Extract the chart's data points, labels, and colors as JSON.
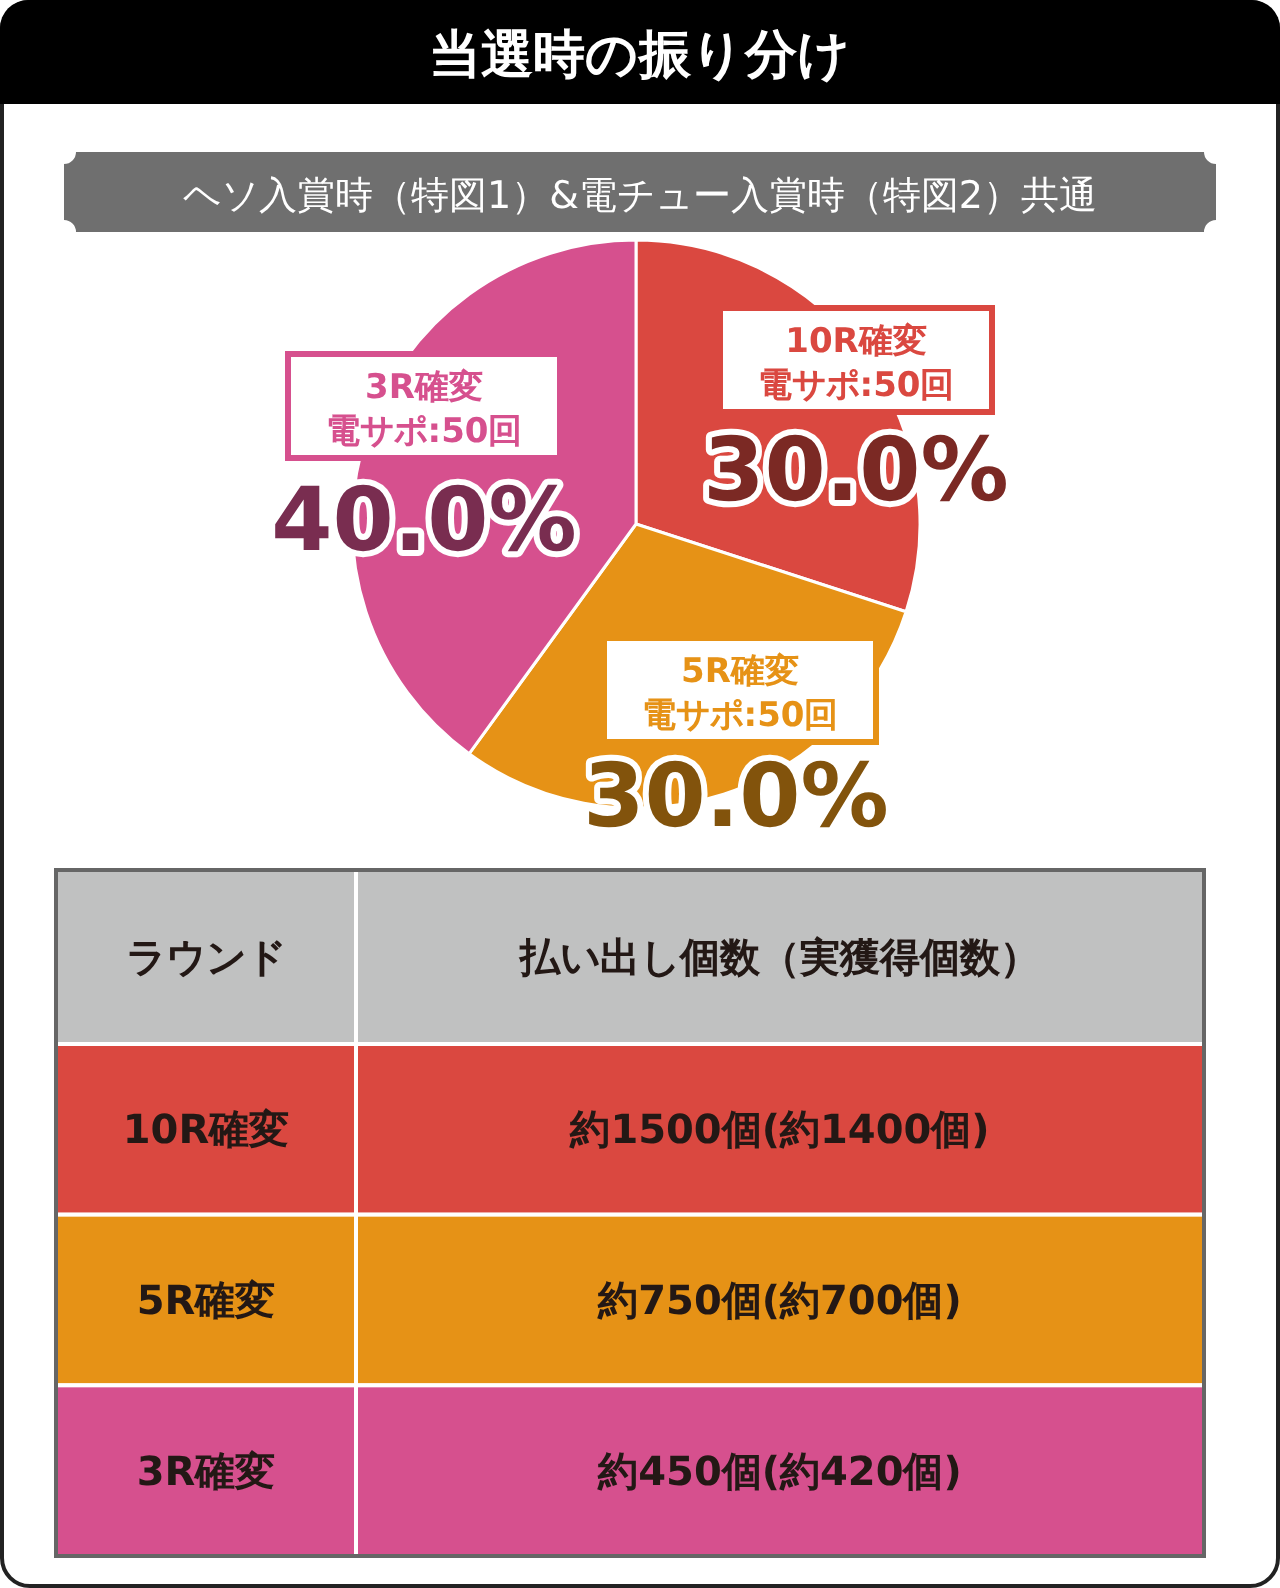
{
  "chart_data": [
    {
      "type": "pie",
      "title": "当選時の振り分け",
      "subtitle": "ヘソ入賞時（特図1）&電チュー入賞時（特図2）共通",
      "categories": [
        "10R確変",
        "5R確変",
        "3R確変"
      ],
      "values": [
        30,
        30,
        40
      ],
      "colors": [
        "#da4840",
        "#e69216",
        "#d6508e"
      ],
      "value_labels": [
        "30.0%",
        "30.0%",
        "40.0%"
      ],
      "annotations": [
        {
          "text": "電サポ:50回",
          "x": "10R確変"
        },
        {
          "text": "電サポ:50回",
          "x": "5R確変"
        },
        {
          "text": "電サポ:50回",
          "x": "3R確変"
        }
      ]
    },
    {
      "type": "other",
      "colors": [
        "#c0c1c1",
        "#da4840",
        "#e69216",
        "#d6508e"
      ],
      "annotations": [
        "ラウンド",
        "払い出し個数（実獲得個数）",
        "10R確変",
        "約1500個(約1400個)",
        "5R確変",
        "約750個(約700個)",
        "3R確変",
        "約450個(約420個)"
      ]
    }
  ]
}
